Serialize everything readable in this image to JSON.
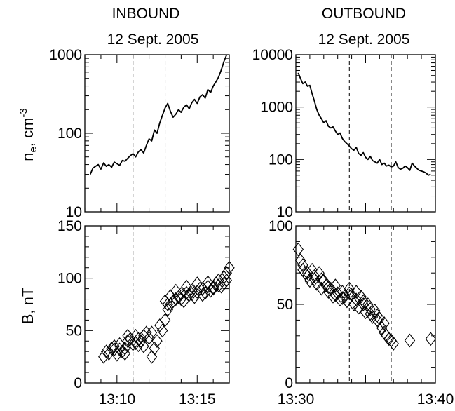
{
  "headers": {
    "left_title": "INBOUND",
    "left_date": "12 Sept. 2005",
    "right_title": "OUTBOUND",
    "right_date": "12 Sept. 2005"
  },
  "y_labels": {
    "density": "n",
    "density_sub": "e",
    "density_unit": ", cm",
    "density_exp": "-3",
    "field": "B, nT"
  },
  "chart_data": [
    {
      "id": "inbound_density",
      "type": "line",
      "title": "INBOUND",
      "subtitle": "12 Sept. 2005",
      "ylabel": "ne, cm-3",
      "yscale": "log",
      "ylim": [
        10,
        1000
      ],
      "xlim": [
        13.1333,
        13.2833
      ],
      "y_tick_labels": [
        "10",
        "100",
        "1000"
      ],
      "y_tick_values": [
        10,
        100,
        1000
      ],
      "x_tick_labels": [],
      "vlines": [
        13.1833,
        13.2167
      ],
      "series": [
        {
          "x": [
            13.1389,
            13.1417,
            13.1444,
            13.1472,
            13.15,
            13.1528,
            13.1556,
            13.1583,
            13.1611,
            13.1639,
            13.1667,
            13.1694,
            13.1722,
            13.175,
            13.1778,
            13.1806,
            13.1833,
            13.1861,
            13.1889,
            13.1917,
            13.1944,
            13.1972,
            13.2,
            13.2028,
            13.2056,
            13.2083,
            13.2111,
            13.2139,
            13.2167,
            13.2194,
            13.2222,
            13.225,
            13.2278,
            13.2306,
            13.2333,
            13.2361,
            13.2389,
            13.2417,
            13.2444,
            13.2472,
            13.25,
            13.2528,
            13.2556,
            13.2583,
            13.2611,
            13.2639,
            13.2667,
            13.2694,
            13.2722,
            13.275,
            13.2778,
            13.2806
          ],
          "values": [
            30,
            36,
            38,
            40,
            35,
            42,
            38,
            40,
            37,
            43,
            41,
            39,
            45,
            44,
            48,
            52,
            55,
            50,
            58,
            62,
            56,
            70,
            85,
            80,
            110,
            100,
            135,
            170,
            210,
            240,
            190,
            160,
            175,
            200,
            185,
            215,
            230,
            205,
            245,
            270,
            240,
            290,
            310,
            280,
            360,
            330,
            400,
            450,
            520,
            640,
            820,
            1000
          ]
        }
      ]
    },
    {
      "id": "outbound_density",
      "type": "line",
      "title": "OUTBOUND",
      "subtitle": "12 Sept. 2005",
      "yscale": "log",
      "ylim": [
        10,
        10000
      ],
      "xlim": [
        13.5,
        13.6667
      ],
      "y_tick_labels": [
        "10",
        "100",
        "1000",
        "10000"
      ],
      "y_tick_values": [
        10,
        100,
        1000,
        10000
      ],
      "x_tick_labels": [],
      "vlines": [
        13.5639,
        13.6139
      ],
      "series": [
        {
          "x": [
            13.5028,
            13.5056,
            13.5083,
            13.5111,
            13.5139,
            13.5167,
            13.5194,
            13.5222,
            13.525,
            13.5278,
            13.5306,
            13.5333,
            13.5361,
            13.5389,
            13.5417,
            13.5444,
            13.5472,
            13.55,
            13.5528,
            13.5556,
            13.5583,
            13.5611,
            13.5639,
            13.5667,
            13.5694,
            13.5722,
            13.575,
            13.5778,
            13.5806,
            13.5833,
            13.5861,
            13.5889,
            13.5917,
            13.5944,
            13.5972,
            13.6,
            13.6028,
            13.6056,
            13.6083,
            13.6111,
            13.6139,
            13.6167,
            13.6194,
            13.6222,
            13.625,
            13.6278,
            13.6306,
            13.6333,
            13.6361,
            13.6389,
            13.6417,
            13.6444,
            13.6472,
            13.65,
            13.6528,
            13.6556,
            13.6583,
            13.6611
          ],
          "values": [
            4500,
            3500,
            2800,
            3000,
            2500,
            2600,
            1800,
            1300,
            900,
            700,
            600,
            500,
            550,
            430,
            400,
            420,
            350,
            300,
            320,
            250,
            220,
            200,
            180,
            160,
            150,
            170,
            130,
            120,
            135,
            110,
            100,
            115,
            95,
            90,
            85,
            100,
            80,
            85,
            75,
            78,
            72,
            75,
            90,
            70,
            65,
            68,
            75,
            70,
            62,
            85,
            75,
            68,
            62,
            60,
            58,
            55,
            50,
            52
          ]
        }
      ]
    },
    {
      "id": "inbound_field",
      "type": "scatter",
      "ylabel": "B, nT",
      "ylim": [
        0,
        150
      ],
      "xlim": [
        13.1333,
        13.2833
      ],
      "y_tick_labels": [
        "0",
        "50",
        "100",
        "150"
      ],
      "y_tick_values": [
        0,
        50,
        100,
        150
      ],
      "x_tick_labels": [
        "13:10",
        "13:15"
      ],
      "x_tick_values": [
        13.1667,
        13.25
      ],
      "vlines": [
        13.1833,
        13.2167
      ],
      "series": [
        {
          "marker": "diamond",
          "x": [
            13.1528,
            13.1556,
            13.1583,
            13.1611,
            13.1639,
            13.1667,
            13.1694,
            13.1722,
            13.175,
            13.1778,
            13.1806,
            13.1833,
            13.1861,
            13.1889,
            13.1917,
            13.1944,
            13.1972,
            13.2,
            13.2028,
            13.2056,
            13.2083,
            13.2111,
            13.2139,
            13.2167,
            13.2194,
            13.2222,
            13.225,
            13.2278,
            13.2306,
            13.2333,
            13.2361,
            13.2389,
            13.2417,
            13.2444,
            13.2472,
            13.25,
            13.2528,
            13.2556,
            13.2583,
            13.2611,
            13.2639,
            13.2667,
            13.2694,
            13.2722,
            13.275,
            13.2778,
            13.2806
          ],
          "values": [
            25,
            30,
            28,
            33,
            35,
            27,
            32,
            30,
            28,
            40,
            42,
            37,
            45,
            36,
            40,
            45,
            48,
            43,
            25,
            33,
            40,
            55,
            50,
            60,
            70,
            75,
            78,
            80,
            82,
            85,
            78,
            86,
            84,
            88,
            82,
            87,
            90,
            84,
            86,
            92,
            88,
            90,
            95,
            93,
            92,
            95,
            98
          ]
        },
        {
          "marker": "diamond",
          "x": [
            13.1639,
            13.1694,
            13.175,
            13.1778,
            13.1861,
            13.1889,
            13.1944,
            13.2028,
            13.2167,
            13.2194,
            13.2222,
            13.2278,
            13.2333,
            13.2389,
            13.2444,
            13.25,
            13.2556,
            13.2611,
            13.2667,
            13.2722,
            13.2778,
            13.2806,
            13.2833
          ],
          "values": [
            32,
            37,
            33,
            45,
            38,
            42,
            35,
            48,
            78,
            75,
            83,
            88,
            80,
            92,
            85,
            95,
            90,
            96,
            91,
            98,
            101,
            105,
            110
          ]
        }
      ]
    },
    {
      "id": "outbound_field",
      "type": "scatter",
      "ylim": [
        0,
        100
      ],
      "xlim": [
        13.5,
        13.6667
      ],
      "y_tick_labels": [
        "0",
        "50",
        "100"
      ],
      "y_tick_values": [
        0,
        50,
        100
      ],
      "x_tick_labels": [
        "13:30",
        "13:40"
      ],
      "x_tick_values": [
        13.5,
        13.6667
      ],
      "vlines": [
        13.5639,
        13.6139
      ],
      "series": [
        {
          "marker": "diamond",
          "x": [
            13.5028,
            13.5056,
            13.5083,
            13.5111,
            13.5139,
            13.5167,
            13.5194,
            13.5222,
            13.525,
            13.5278,
            13.5306,
            13.5333,
            13.5361,
            13.5389,
            13.5417,
            13.5444,
            13.5472,
            13.55,
            13.5528,
            13.5556,
            13.5583,
            13.5611,
            13.5639,
            13.5667,
            13.5694,
            13.5722,
            13.575,
            13.5778,
            13.5806,
            13.5833,
            13.5861,
            13.5889,
            13.5917,
            13.5944,
            13.5972,
            13.6,
            13.6028,
            13.6056,
            13.6083,
            13.6111,
            13.6139,
            13.6167,
            13.6361,
            13.6611
          ],
          "values": [
            85,
            78,
            72,
            70,
            68,
            65,
            72,
            66,
            63,
            70,
            60,
            65,
            62,
            58,
            60,
            55,
            62,
            57,
            53,
            58,
            55,
            52,
            60,
            56,
            50,
            58,
            48,
            55,
            52,
            45,
            50,
            47,
            42,
            46,
            40,
            41,
            35,
            32,
            30,
            28,
            27,
            25,
            27,
            28
          ]
        },
        {
          "marker": "diamond",
          "x": [
            13.5083,
            13.5139,
            13.5222,
            13.5306,
            13.5389,
            13.5472,
            13.5556,
            13.5639,
            13.5722,
            13.5806,
            13.5889,
            13.5972,
            13.6056
          ],
          "values": [
            75,
            70,
            68,
            66,
            61,
            56,
            54,
            57,
            53,
            50,
            44,
            43,
            38
          ]
        }
      ]
    }
  ]
}
